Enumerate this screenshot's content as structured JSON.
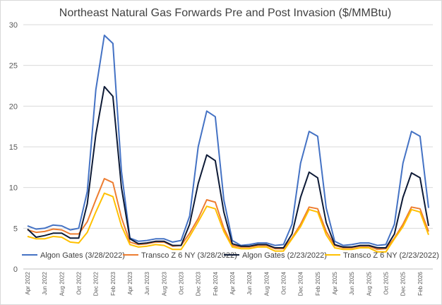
{
  "chart_data": {
    "type": "line",
    "title": "Northeast Natural Gas Forwards Pre and Post Invasion ($/MMBtu)",
    "xlabel": "",
    "ylabel": "",
    "ylim": [
      0,
      30
    ],
    "y_ticks": [
      "0",
      "5",
      "10",
      "15",
      "20",
      "25",
      "30"
    ],
    "grid": true,
    "legend_position": "bottom-inside",
    "categories": [
      "Apr 2022",
      "May 2022",
      "Jun 2022",
      "Jul 2022",
      "Aug 2022",
      "Sep 2022",
      "Oct 2022",
      "Nov 2022",
      "Dec 2022",
      "Jan 2023",
      "Feb 2023",
      "Mar 2023",
      "Apr 2023",
      "May 2023",
      "Jun 2023",
      "Jul 2023",
      "Aug 2023",
      "Sep 2023",
      "Oct 2023",
      "Nov 2023",
      "Dec 2023",
      "Jan 2024",
      "Feb 2024",
      "Mar 2024",
      "Apr 2024",
      "May 2024",
      "Jun 2024",
      "Jul 2024",
      "Aug 2024",
      "Sep 2024",
      "Oct 2024",
      "Nov 2024",
      "Dec 2024",
      "Jan 2025",
      "Feb 2025",
      "Mar 2025",
      "Apr 2025",
      "May 2025",
      "Jun 2025",
      "Jul 2025",
      "Aug 2025",
      "Sep 2025",
      "Oct 2025",
      "Nov 2025",
      "Dec 2025",
      "Jan 2026",
      "Feb 2026",
      "Mar 2026"
    ],
    "series": [
      {
        "name": "Algon Gates (3/28/2022)",
        "color": "#4472c4",
        "values": [
          5.3,
          4.9,
          5.0,
          5.4,
          5.3,
          4.8,
          5.0,
          9.5,
          22.0,
          28.7,
          27.7,
          12.0,
          3.8,
          3.4,
          3.5,
          3.7,
          3.7,
          3.3,
          3.5,
          6.5,
          15.0,
          19.4,
          18.7,
          8.5,
          3.5,
          2.9,
          3.0,
          3.2,
          3.2,
          2.9,
          3.0,
          5.5,
          13.0,
          16.9,
          16.3,
          7.5,
          3.4,
          2.9,
          3.0,
          3.2,
          3.2,
          2.9,
          3.0,
          5.5,
          13.0,
          16.9,
          16.3,
          7.5
        ]
      },
      {
        "name": "Transco Z 6 NY (3/28/2022)",
        "color": "#ed7d31",
        "values": [
          4.8,
          4.5,
          4.6,
          4.9,
          4.8,
          4.3,
          4.3,
          5.8,
          8.5,
          11.1,
          10.6,
          6.3,
          3.3,
          3.0,
          3.1,
          3.3,
          3.3,
          2.8,
          2.9,
          4.4,
          6.2,
          8.5,
          8.2,
          5.0,
          2.9,
          2.7,
          2.7,
          2.9,
          2.9,
          2.5,
          2.5,
          3.8,
          5.5,
          7.6,
          7.4,
          4.6,
          2.9,
          2.6,
          2.6,
          2.8,
          2.8,
          2.4,
          2.5,
          3.8,
          5.5,
          7.6,
          7.4,
          4.6
        ]
      },
      {
        "name": "Algon Gates (2/23/2022)",
        "color": "#0d1a36",
        "values": [
          4.9,
          3.9,
          4.1,
          4.4,
          4.4,
          3.8,
          3.8,
          8.0,
          16.5,
          22.4,
          21.2,
          10.0,
          3.7,
          3.1,
          3.2,
          3.4,
          3.4,
          2.9,
          2.9,
          5.5,
          10.5,
          14.0,
          13.3,
          7.0,
          3.1,
          2.8,
          2.8,
          3.0,
          3.0,
          2.6,
          2.6,
          4.3,
          8.8,
          11.9,
          11.2,
          5.7,
          3.0,
          2.7,
          2.7,
          2.9,
          2.9,
          2.6,
          2.6,
          4.3,
          8.8,
          11.8,
          11.2,
          5.3
        ]
      },
      {
        "name": "Transco Z 6 NY (2/23/2022)",
        "color": "#ffc000",
        "values": [
          4.0,
          3.7,
          3.7,
          4.0,
          3.9,
          3.3,
          3.2,
          4.5,
          7.0,
          9.3,
          8.9,
          5.3,
          3.0,
          2.7,
          2.8,
          3.0,
          2.9,
          2.4,
          2.4,
          4.0,
          5.8,
          7.7,
          7.4,
          4.6,
          2.7,
          2.5,
          2.5,
          2.7,
          2.7,
          2.2,
          2.2,
          3.7,
          5.2,
          7.3,
          7.0,
          4.2,
          2.6,
          2.4,
          2.4,
          2.6,
          2.6,
          2.1,
          2.1,
          3.7,
          5.2,
          7.3,
          7.0,
          4.2
        ]
      }
    ]
  }
}
